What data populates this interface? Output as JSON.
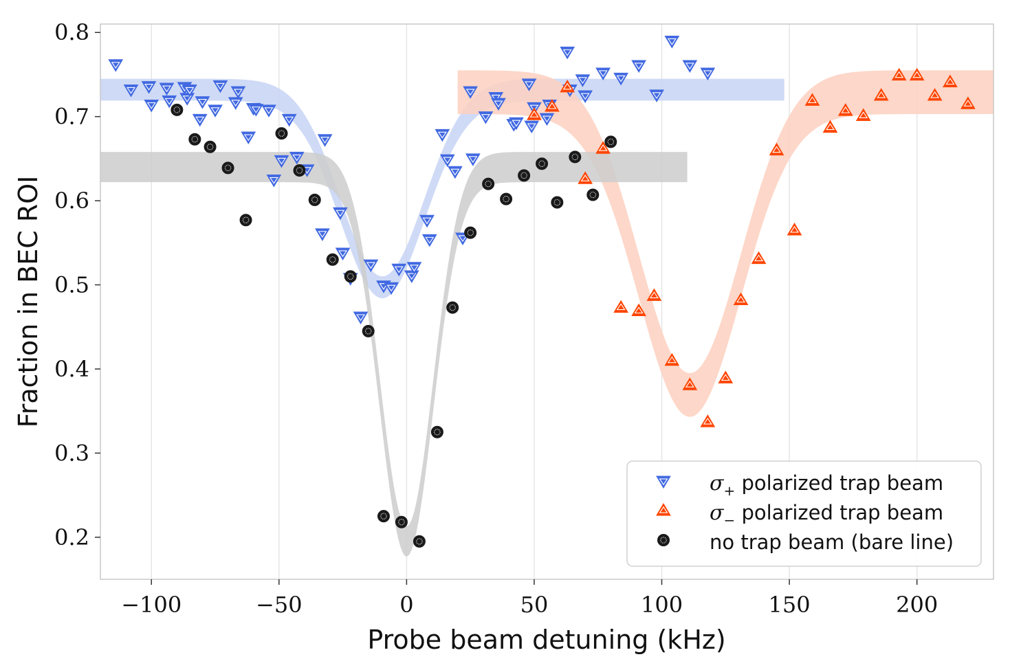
{
  "chart_data": {
    "type": "scatter",
    "title": "",
    "xlabel": "Probe beam detuning (kHz)",
    "ylabel": "Fraction in BEC ROI",
    "xlim": [
      -120,
      230
    ],
    "ylim": [
      0.15,
      0.81
    ],
    "xticks": [
      -100,
      -50,
      0,
      50,
      100,
      150,
      200
    ],
    "xtick_labels": [
      "−100",
      "−50",
      "0",
      "50",
      "100",
      "150",
      "200"
    ],
    "yticks": [
      0.2,
      0.3,
      0.4,
      0.5,
      0.6,
      0.7,
      0.8
    ],
    "ytick_labels": [
      "0.2",
      "0.3",
      "0.4",
      "0.5",
      "0.6",
      "0.7",
      "0.8"
    ],
    "grid": "vertical",
    "legend_position": "bottom-right",
    "series": [
      {
        "name_symbol": "σ",
        "name_sub": "+",
        "name_text": " polarized trap beam",
        "marker": "triangle-down",
        "color": "#4169e1",
        "band_color": "#c7d3f5",
        "fit": {
          "base": 0.732,
          "depth": 0.235,
          "center": -9.5,
          "sigma": 16.5,
          "xmin": -120,
          "xmax": 148,
          "width": 0.026
        },
        "x": [
          -114,
          -108,
          -101,
          -100,
          -94,
          -93,
          -87,
          -86,
          -85,
          -81,
          -80,
          -75,
          -73,
          -67,
          -66,
          -62,
          -60,
          -59,
          -54,
          -52,
          -49,
          -46,
          -43,
          -39,
          -33,
          -32,
          -26,
          -25,
          -22,
          -18,
          -14,
          -9,
          -6,
          -3,
          2,
          3,
          8,
          9,
          14,
          16,
          19,
          22,
          25,
          26,
          31,
          35,
          36,
          42,
          43,
          48,
          49,
          50,
          55,
          56,
          63,
          64,
          69,
          70,
          77,
          84,
          91,
          98,
          104,
          111,
          118
        ],
        "y": [
          0.762,
          0.732,
          0.736,
          0.714,
          0.734,
          0.719,
          0.735,
          0.722,
          0.732,
          0.697,
          0.718,
          0.708,
          0.737,
          0.717,
          0.73,
          0.676,
          0.71,
          0.709,
          0.708,
          0.625,
          0.648,
          0.697,
          0.652,
          0.637,
          0.561,
          0.673,
          0.586,
          0.538,
          0.508,
          0.462,
          0.524,
          0.499,
          0.497,
          0.519,
          0.511,
          0.521,
          0.577,
          0.554,
          0.679,
          0.649,
          0.635,
          0.556,
          0.73,
          0.65,
          0.7,
          0.723,
          0.716,
          0.691,
          0.693,
          0.739,
          0.689,
          0.711,
          0.698,
          0.714,
          0.777,
          0.732,
          0.744,
          0.725,
          0.752,
          0.746,
          0.761,
          0.726,
          0.79,
          0.761,
          0.752
        ]
      },
      {
        "name_symbol": "σ",
        "name_sub": "−",
        "name_text": " polarized trap beam",
        "marker": "triangle-up",
        "color": "#ff4500",
        "band_color": "#fdd0bf",
        "fit": {
          "base": 0.729,
          "depth": 0.36,
          "center": 111,
          "sigma": 20,
          "xmin": 20,
          "xmax": 230,
          "width": 0.052
        },
        "x": [
          50,
          57,
          63,
          70,
          77,
          84,
          91,
          97,
          104,
          111,
          118,
          125,
          131,
          138,
          145,
          152,
          159,
          166,
          172,
          179,
          186,
          193,
          200,
          207,
          213,
          220
        ],
        "y": [
          0.702,
          0.712,
          0.735,
          0.626,
          0.662,
          0.473,
          0.469,
          0.487,
          0.41,
          0.381,
          0.337,
          0.389,
          0.482,
          0.531,
          0.66,
          0.565,
          0.719,
          0.687,
          0.707,
          0.701,
          0.725,
          0.749,
          0.749,
          0.725,
          0.741,
          0.715
        ]
      },
      {
        "name_symbol": "",
        "name_sub": "",
        "name_text": "no trap beam (bare line)",
        "marker": "circle",
        "color": "#1a1a1a",
        "band_color": "#cccccc",
        "fit": {
          "base": 0.64,
          "depth": 0.445,
          "center": 0,
          "sigma": 10.5,
          "xmin": -120,
          "xmax": 110,
          "width": 0.036
        },
        "x": [
          -90,
          -83,
          -77,
          -70,
          -63,
          -49,
          -42,
          -36,
          -29,
          -22,
          -15,
          -9,
          -2,
          5,
          12,
          18,
          25,
          32,
          39,
          46,
          53,
          59,
          66,
          73,
          80
        ],
        "y": [
          0.708,
          0.673,
          0.664,
          0.639,
          0.577,
          0.68,
          0.636,
          0.601,
          0.53,
          0.51,
          0.445,
          0.225,
          0.218,
          0.195,
          0.325,
          0.473,
          0.562,
          0.62,
          0.602,
          0.63,
          0.644,
          0.598,
          0.652,
          0.607,
          0.67
        ]
      }
    ]
  }
}
